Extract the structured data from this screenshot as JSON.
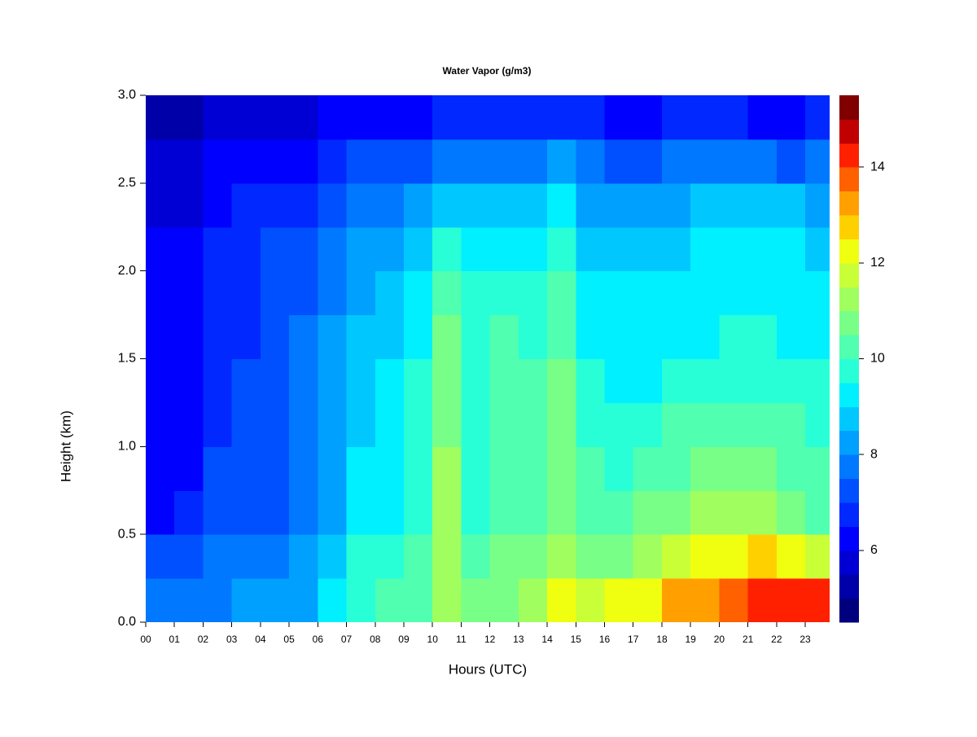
{
  "chart_data": {
    "type": "heatmap",
    "title": "Water Vapor (g/m3)",
    "x_label": "Hours (UTC)",
    "y_label": "Height (km)",
    "xlim": [
      0,
      23.85
    ],
    "ylim": [
      0,
      3
    ],
    "xticks": [
      {
        "value": 0,
        "label": "00"
      },
      {
        "value": 1,
        "label": "01"
      },
      {
        "value": 2,
        "label": "02"
      },
      {
        "value": 3,
        "label": "03"
      },
      {
        "value": 4,
        "label": "04"
      },
      {
        "value": 5,
        "label": "05"
      },
      {
        "value": 6,
        "label": "06"
      },
      {
        "value": 7,
        "label": "07"
      },
      {
        "value": 8,
        "label": "08"
      },
      {
        "value": 9,
        "label": "09"
      },
      10,
      11,
      12,
      13,
      14,
      15,
      16,
      17,
      18,
      19,
      20,
      21,
      22,
      23
    ],
    "yticks": [
      {
        "value": 0,
        "label": "0.0"
      },
      0.5,
      {
        "value": 1,
        "label": "1.0"
      },
      1.5,
      {
        "value": 2,
        "label": "2.0"
      },
      2.5,
      {
        "value": 3,
        "label": "3.0"
      }
    ],
    "x_bins": [
      0,
      1,
      2,
      3,
      4,
      5,
      6,
      7,
      8,
      9,
      10,
      11,
      12,
      13,
      14,
      15,
      16,
      17,
      18,
      19,
      20,
      21,
      22,
      23,
      24
    ],
    "y_bins": [
      0,
      0.25,
      0.5,
      0.75,
      1,
      1.25,
      1.5,
      1.75,
      2,
      2.25,
      2.5,
      2.75,
      3
    ],
    "values": [
      [
        7.5,
        7.5,
        7.5,
        8,
        8,
        8,
        9,
        9.5,
        10,
        10,
        11,
        10.5,
        10.5,
        11,
        12,
        11.5,
        12,
        12,
        13,
        13,
        13.5,
        14,
        14,
        14
      ],
      [
        7,
        7,
        7.5,
        7.5,
        7.5,
        8,
        8.5,
        9.5,
        9.5,
        10,
        11,
        10,
        10.5,
        10.5,
        11,
        10.5,
        10.5,
        11,
        11.5,
        12,
        12,
        12.5,
        12,
        11.5
      ],
      [
        6,
        6.5,
        7,
        7,
        7,
        7.5,
        8,
        9,
        9,
        9.5,
        11,
        9.5,
        10,
        10,
        10.5,
        10,
        10,
        10.5,
        10.5,
        11,
        11,
        11,
        10.5,
        10
      ],
      [
        6,
        6,
        7,
        7,
        7,
        7.5,
        8,
        9,
        9,
        9.5,
        11,
        9.5,
        10,
        10,
        10.5,
        10,
        9.5,
        10,
        10,
        10.5,
        10.5,
        10.5,
        10,
        10
      ],
      [
        6,
        6,
        6.5,
        7,
        7,
        7.5,
        8,
        8.5,
        9,
        9.5,
        10.5,
        9.5,
        10,
        10,
        10.5,
        9.5,
        9.5,
        9.5,
        10,
        10,
        10,
        10,
        10,
        9.5
      ],
      [
        6,
        6,
        6.5,
        7,
        7,
        7.5,
        8,
        8.5,
        9,
        9.5,
        10.5,
        9.5,
        10,
        10,
        10.5,
        9.5,
        9,
        9,
        9.5,
        9.5,
        9.5,
        9.5,
        9.5,
        9.5
      ],
      [
        6,
        6,
        6.5,
        6.5,
        7,
        7.5,
        8,
        8.5,
        8.5,
        9,
        10.5,
        9.5,
        10,
        9.5,
        10,
        9,
        9,
        9,
        9,
        9,
        9.5,
        9.5,
        9,
        9
      ],
      [
        6,
        6,
        6.5,
        6.5,
        7,
        7,
        7.5,
        8,
        8.5,
        9,
        10,
        9.5,
        9.5,
        9.5,
        10,
        9,
        9,
        9,
        9,
        9,
        9,
        9,
        9,
        9
      ],
      [
        6,
        6,
        6.5,
        6.5,
        7,
        7,
        7.5,
        8,
        8,
        8.5,
        9.5,
        9,
        9,
        9,
        9.5,
        8.5,
        8.5,
        8.5,
        8.5,
        9,
        9,
        9,
        9,
        8.5
      ],
      [
        5.5,
        5.5,
        6,
        6.5,
        6.5,
        6.5,
        7,
        7.5,
        7.5,
        8,
        8.5,
        8.5,
        8.5,
        8.5,
        9,
        8,
        8,
        8,
        8,
        8.5,
        8.5,
        8.5,
        8.5,
        8
      ],
      [
        5.5,
        5.5,
        6,
        6,
        6,
        6,
        6.5,
        7,
        7,
        7,
        7.5,
        7.5,
        7.5,
        7.5,
        8,
        7.5,
        7,
        7,
        7.5,
        7.5,
        7.5,
        7.5,
        7,
        7.5
      ],
      [
        5,
        5,
        5.5,
        5.5,
        5.5,
        5.5,
        6,
        6,
        6,
        6,
        6.5,
        6.5,
        6.5,
        6.5,
        6.5,
        6.5,
        6,
        6,
        6.5,
        6.5,
        6.5,
        6,
        6,
        6.5
      ]
    ],
    "colorbar": {
      "levels": [
        4.5,
        5,
        5.5,
        6,
        6.5,
        7,
        7.5,
        8,
        8.5,
        9,
        9.5,
        10,
        10.5,
        11,
        11.5,
        12,
        12.5,
        13,
        13.5,
        14,
        14.5,
        15,
        15.5
      ],
      "colors": [
        "#00007F",
        "#0000A8",
        "#0000D4",
        "#0000FF",
        "#0028FF",
        "#0050FF",
        "#0078FF",
        "#00A0FF",
        "#00C8FF",
        "#00F0FF",
        "#28FFD7",
        "#50FFAF",
        "#78FF87",
        "#A0FF5F",
        "#C8FF37",
        "#F0FF0F",
        "#FFD000",
        "#FFA000",
        "#FF6000",
        "#FF2000",
        "#C00000",
        "#800000"
      ],
      "ticks": [
        6,
        8,
        10,
        12,
        14
      ]
    }
  }
}
